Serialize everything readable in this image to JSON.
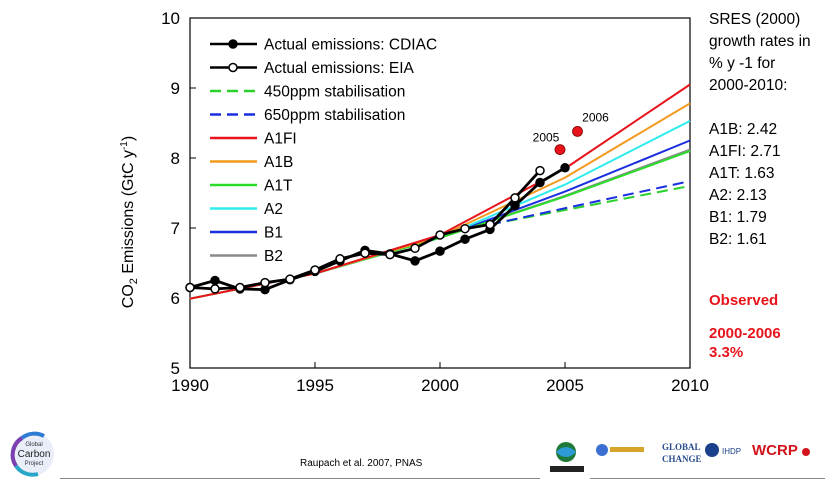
{
  "chart_data": {
    "type": "line",
    "xlabel": "",
    "ylabel": "CO2 Emissions (GtC y-1)",
    "ylabel_parts": {
      "a": "CO",
      "sub": "2",
      "b": " Emissions (GtC y",
      "sup": "-1",
      "c": ")"
    },
    "xlim": [
      1990,
      2010
    ],
    "ylim": [
      5,
      10
    ],
    "xticks": [
      "1990",
      "1995",
      "2000",
      "2005",
      "2010"
    ],
    "yticks": [
      "5",
      "6",
      "7",
      "8",
      "9",
      "10"
    ],
    "grid": false,
    "legend_position": "top-left",
    "series": [
      {
        "name": "Actual emissions: CDIAC",
        "color": "#000000",
        "style": "solid-filled-markers",
        "x": [
          1990,
          1991,
          1992,
          1993,
          1994,
          1995,
          1996,
          1997,
          1998,
          1999,
          2000,
          2001,
          2002,
          2003,
          2004,
          2005
        ],
        "y": [
          6.15,
          6.25,
          6.13,
          6.12,
          6.26,
          6.38,
          6.53,
          6.68,
          6.63,
          6.53,
          6.67,
          6.84,
          6.98,
          7.32,
          7.65,
          7.86
        ]
      },
      {
        "name": "Actual emissions: EIA",
        "color": "#000000",
        "style": "solid-open-markers",
        "x": [
          1990,
          1991,
          1992,
          1993,
          1994,
          1995,
          1996,
          1997,
          1998,
          1999,
          2000,
          2001,
          2002,
          2003,
          2004
        ],
        "y": [
          6.15,
          6.13,
          6.15,
          6.22,
          6.27,
          6.4,
          6.56,
          6.64,
          6.62,
          6.71,
          6.9,
          6.99,
          7.05,
          7.43,
          7.82
        ]
      },
      {
        "name": "450ppm stabilisation",
        "color": "#2bd12b",
        "style": "dashed",
        "x": [
          2002,
          2010
        ],
        "y": [
          7.05,
          7.6
        ]
      },
      {
        "name": "650ppm stabilisation",
        "color": "#1a2ee0",
        "style": "dashed",
        "x": [
          2002,
          2010
        ],
        "y": [
          7.05,
          7.67
        ]
      },
      {
        "name": "A1FI",
        "color": "#e8141b",
        "style": "solid",
        "x": [
          1990,
          1995,
          2000,
          2005,
          2010
        ],
        "y": [
          5.99,
          6.35,
          6.9,
          7.85,
          9.05
        ]
      },
      {
        "name": "A1B",
        "color": "#f39a1f",
        "style": "solid",
        "x": [
          1990,
          1995,
          2000,
          2005,
          2010
        ],
        "y": [
          5.99,
          6.35,
          6.88,
          7.72,
          8.78
        ]
      },
      {
        "name": "A1T",
        "color": "#2bdc2b",
        "style": "solid",
        "x": [
          1990,
          1995,
          2000,
          2005,
          2010
        ],
        "y": [
          5.99,
          6.35,
          6.86,
          7.45,
          8.1
        ]
      },
      {
        "name": "A2",
        "color": "#2eecec",
        "style": "solid",
        "x": [
          1990,
          1995,
          2000,
          2005,
          2010
        ],
        "y": [
          5.99,
          6.35,
          6.86,
          7.62,
          8.53
        ]
      },
      {
        "name": "B1",
        "color": "#1a2ee0",
        "style": "solid",
        "x": [
          1990,
          1995,
          2000,
          2005,
          2010
        ],
        "y": [
          5.99,
          6.35,
          6.86,
          7.52,
          8.25
        ]
      },
      {
        "name": "B2",
        "color": "#8a8a8a",
        "style": "solid",
        "x": [
          1990,
          1995,
          2000,
          2005,
          2010
        ],
        "y": [
          5.99,
          6.35,
          6.86,
          7.46,
          8.12
        ]
      }
    ],
    "points": [
      {
        "label": "2005",
        "x": 2004.8,
        "y": 8.12,
        "color": "#e8141b"
      },
      {
        "label": "2006",
        "x": 2005.5,
        "y": 8.38,
        "color": "#e8141b"
      }
    ]
  },
  "sidebar": {
    "heading_lines": [
      "SRES (2000)",
      "growth rates in",
      "% y -1 for",
      "2000-2010:"
    ],
    "rates": [
      "A1B: 2.42",
      "A1FI: 2.71",
      "A1T: 1.63",
      "A2: 2.13",
      "B1: 1.79",
      "B2: 1.61"
    ],
    "observed_label": "Observed",
    "observed_period": "2000-2006",
    "observed_rate": "3.3%"
  },
  "footer": {
    "citation": "Raupach et al. 2007, PNAS",
    "gcp_logo_lines": [
      "Global",
      "Carbon",
      "Project"
    ],
    "partner_logos": [
      "ESSP",
      "IHDP",
      "WCRP"
    ],
    "partner_texts": [
      "GLOBAL",
      "CHANGE",
      "IHDP",
      "WCRP"
    ]
  }
}
